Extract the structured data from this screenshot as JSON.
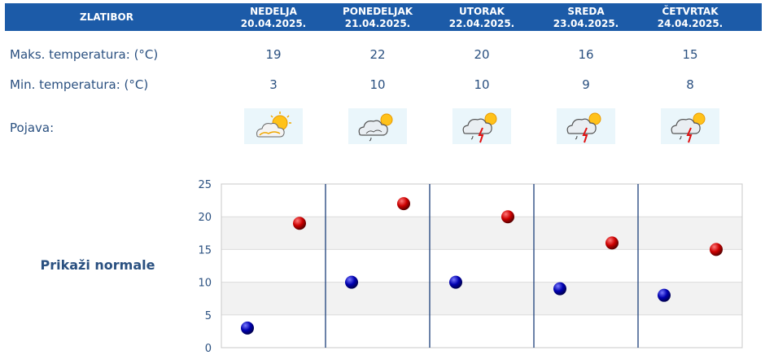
{
  "header": {
    "place": "ZLATIBOR",
    "days": [
      {
        "day": "NEDELJA",
        "date": "20.04.2025."
      },
      {
        "day": "PONEDELJAK",
        "date": "21.04.2025."
      },
      {
        "day": "UTORAK",
        "date": "22.04.2025."
      },
      {
        "day": "SREDA",
        "date": "23.04.2025."
      },
      {
        "day": "ČETVRTAK",
        "date": "24.04.2025."
      }
    ]
  },
  "rows": {
    "max_label": "Maks. temperatura: (°C)",
    "min_label": "Min. temperatura: (°C)",
    "weather_label": "Pojava:"
  },
  "weather_icons": [
    "sun-cloud-icon",
    "cloud-sun-light-rain-icon",
    "storm-sun-icon",
    "storm-sun-icon",
    "storm-sun-icon"
  ],
  "norm_link": "Prikaži normale",
  "colors": {
    "header_bg": "#1c5ba8",
    "max_point": "#cc0000",
    "min_point": "#0000aa",
    "separator": "#1c3f7a"
  },
  "chart_data": {
    "type": "scatter",
    "categories": [
      "20.04.2025.",
      "21.04.2025.",
      "22.04.2025.",
      "23.04.2025.",
      "24.04.2025."
    ],
    "series": [
      {
        "values": [
          3,
          10,
          10,
          9,
          8
        ]
      },
      {
        "values": [
          19,
          22,
          20,
          16,
          15
        ]
      }
    ],
    "ylim": [
      0,
      25
    ],
    "yticks": [
      "0",
      "5",
      "10",
      "15",
      "20",
      "25"
    ],
    "grid": true,
    "legend": "none"
  }
}
